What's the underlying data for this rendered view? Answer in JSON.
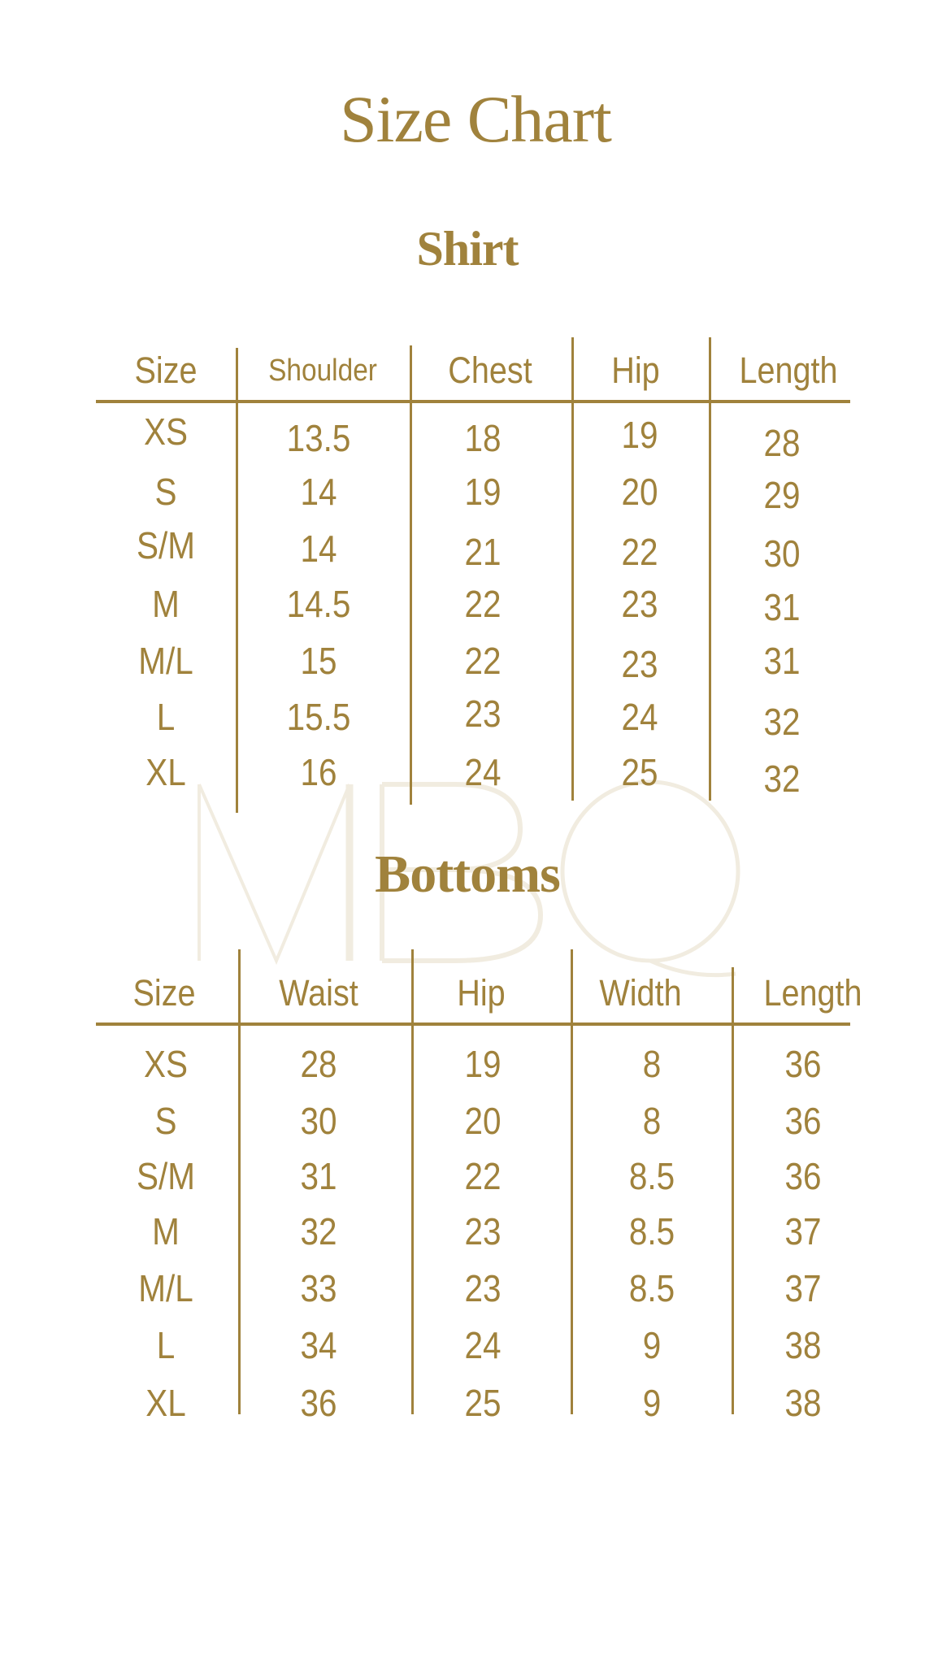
{
  "title": "Size Chart",
  "watermark": "MBQ",
  "colors": {
    "gold": "#a0823c",
    "watermark": "#f1ece0",
    "background": "#ffffff"
  },
  "shirt": {
    "title": "Shirt",
    "headers": [
      "Size",
      "Shoulder",
      "Chest",
      "Hip",
      "Length"
    ],
    "rows": [
      [
        "XS",
        "13.5",
        "18",
        "19",
        "28"
      ],
      [
        "S",
        "14",
        "19",
        "20",
        "29"
      ],
      [
        "S/M",
        "14",
        "21",
        "22",
        "30"
      ],
      [
        "M",
        "14.5",
        "22",
        "23",
        "31"
      ],
      [
        "M/L",
        "15",
        "22",
        "23",
        "31"
      ],
      [
        "L",
        "15.5",
        "23",
        "24",
        "32"
      ],
      [
        "XL",
        "16",
        "24",
        "25",
        "32"
      ]
    ]
  },
  "bottoms": {
    "title": "Bottoms",
    "headers": [
      "Size",
      "Waist",
      "Hip",
      "Width",
      "Length"
    ],
    "rows": [
      [
        "XS",
        "28",
        "19",
        "8",
        "36"
      ],
      [
        "S",
        "30",
        "20",
        "8",
        "36"
      ],
      [
        "S/M",
        "31",
        "22",
        "8.5",
        "36"
      ],
      [
        "M",
        "32",
        "23",
        "8.5",
        "37"
      ],
      [
        "M/L",
        "33",
        "23",
        "8.5",
        "37"
      ],
      [
        "L",
        "34",
        "24",
        "9",
        "38"
      ],
      [
        "XL",
        "36",
        "25",
        "9",
        "38"
      ]
    ]
  }
}
